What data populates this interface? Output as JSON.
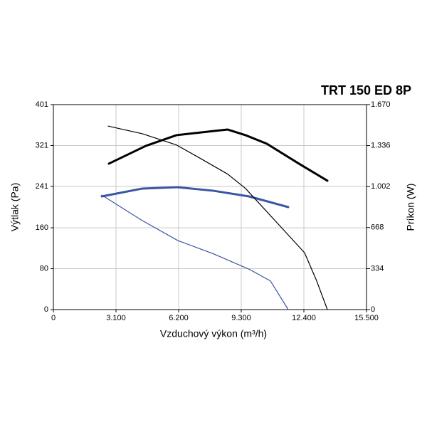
{
  "chart_data": {
    "type": "line",
    "title": "TRT 150 ED 8P",
    "x_label": "Vzduchový výkon (m³/h)",
    "y_label": "Výtlak (Pa)",
    "y2_label": "Príkon (W)",
    "xlim": [
      0,
      15500
    ],
    "xticks": [
      0,
      {
        "value": 3100,
        "label": "3.100"
      },
      {
        "value": 6200,
        "label": "6.200"
      },
      {
        "value": 9300,
        "label": "9.300"
      },
      {
        "value": 12400,
        "label": "12.400"
      },
      {
        "value": 15500,
        "label": "15.500"
      }
    ],
    "ylim": [
      0,
      401
    ],
    "yticks": [
      0,
      80,
      160,
      241,
      321,
      401
    ],
    "y2lim": [
      0,
      1670
    ],
    "y2ticks": [
      0,
      334,
      668,
      {
        "value": 1002,
        "label": "1.002"
      },
      {
        "value": 1336,
        "label": "1.336"
      },
      {
        "value": 1670,
        "label": "1.670"
      }
    ],
    "grid": true,
    "series": [
      {
        "color": "#000000",
        "axis": "y2",
        "thick": true,
        "x": [
          2748,
          4580,
          6094,
          7926,
          8630,
          9511,
          10568,
          12153,
          13562
        ],
        "values": [
          1189,
          1334,
          1421,
          1455,
          1467,
          1421,
          1351,
          1189,
          1050
        ]
      },
      {
        "color": "#3a55a4",
        "axis": "y2",
        "thick": true,
        "x": [
          2395,
          4404,
          6165,
          7926,
          9687,
          11625
        ],
        "values": [
          922,
          986,
          997,
          968,
          922,
          835
        ]
      },
      {
        "color": "#000000",
        "thick": false,
        "x": [
          2712,
          4404,
          6094,
          7221,
          8630,
          9511,
          10392,
          11625,
          12435,
          13034,
          13562
        ],
        "values": [
          359,
          344,
          322,
          297,
          265,
          237,
          199,
          146,
          111,
          56,
          0
        ]
      },
      {
        "color": "#3a55a4",
        "thick": false,
        "x": [
          2395,
          4404,
          6165,
          7926,
          9687,
          10744,
          11625
        ],
        "values": [
          224,
          174,
          135,
          109,
          79,
          56,
          0
        ]
      }
    ]
  }
}
